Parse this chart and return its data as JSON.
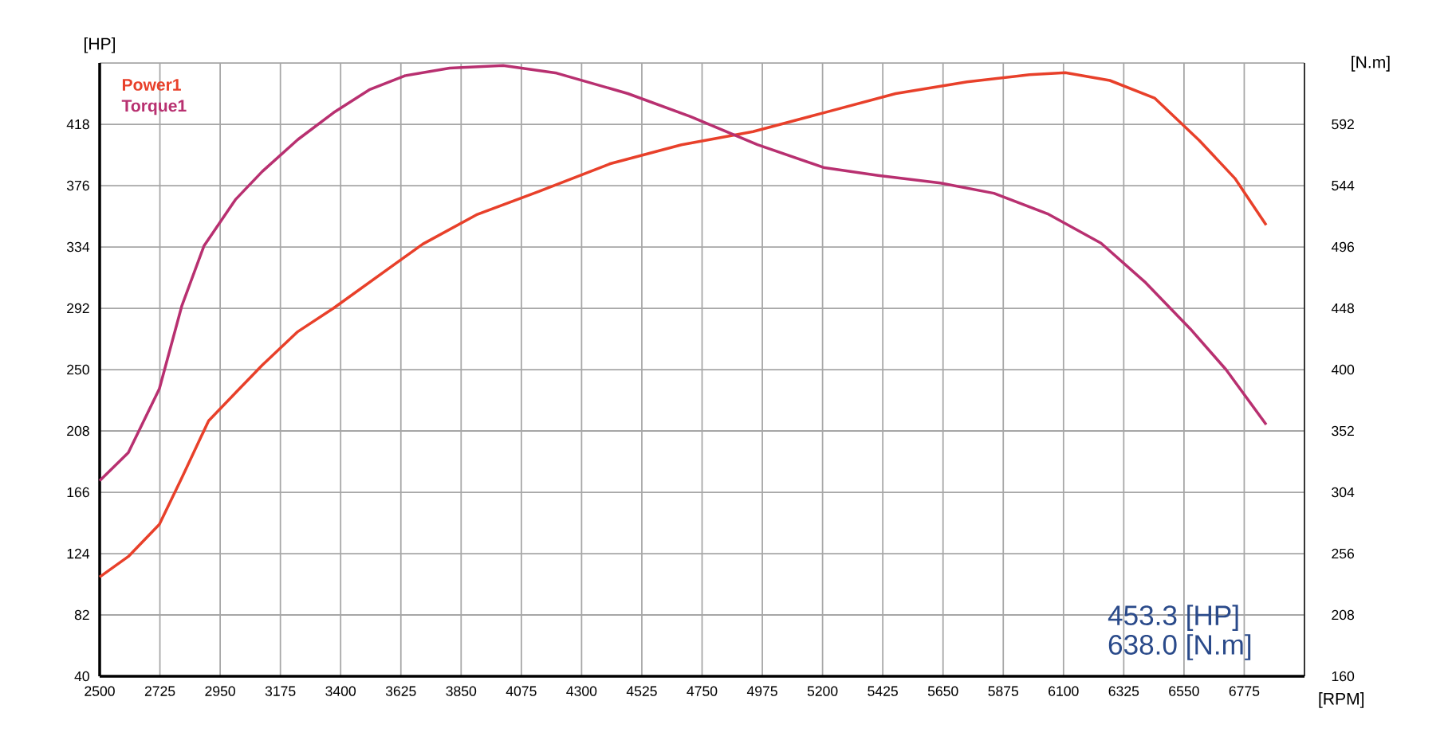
{
  "chart_data": {
    "type": "line",
    "xlabel": "[RPM]",
    "ylabel": "[HP]",
    "y2label": "[N.m]",
    "xlim": [
      2500,
      7000
    ],
    "xticks": [
      2500,
      2725,
      2950,
      3175,
      3400,
      3625,
      3850,
      4075,
      4300,
      4525,
      4750,
      4975,
      5200,
      5425,
      5650,
      5875,
      6100,
      6325,
      6550,
      6775,
      {
        "value": 7000,
        "label": null
      }
    ],
    "ylim": [
      40,
      460
    ],
    "yticks": [
      40,
      82,
      124,
      166,
      208,
      250,
      292,
      334,
      376,
      418,
      {
        "value": 460,
        "label": null
      }
    ],
    "y2lim": [
      160,
      640
    ],
    "y2ticks": [
      160,
      208,
      256,
      304,
      352,
      400,
      448,
      496,
      544,
      592
    ],
    "grid": true,
    "legend": "top left",
    "marker": "none",
    "line_style": "solid",
    "annotations": [
      "453.3  [HP]",
      "638.0  [N.m]"
    ],
    "series": [
      {
        "name": "Power1",
        "color": "#e8402a",
        "x": [
          2500,
          2607,
          2723,
          2807,
          2907,
          3007,
          3107,
          3240,
          3373,
          3540,
          3707,
          3907,
          4140,
          4407,
          4673,
          4940,
          5207,
          5473,
          5740,
          5973,
          6107,
          6273,
          6440,
          6607,
          6740,
          6857
        ],
        "values": [
          108,
          122,
          144,
          176,
          215,
          234,
          253,
          276,
          292,
          314,
          336,
          356,
          372,
          391,
          404,
          413,
          426,
          439,
          447,
          452,
          453.3,
          448,
          436,
          407,
          381,
          349
        ]
      },
      {
        "name": "Torque1",
        "color": "#b83070",
        "axis": "y2",
        "x": [
          2500,
          2607,
          2723,
          2807,
          2890,
          3007,
          3107,
          3240,
          3373,
          3507,
          3640,
          3807,
          4007,
          4207,
          4473,
          4707,
          4957,
          5207,
          5407,
          5640,
          5840,
          6040,
          6240,
          6407,
          6573,
          6707,
          6857
        ],
        "values": [
          313,
          335,
          385,
          450,
          497,
          533,
          555,
          580,
          601,
          619,
          630,
          636,
          638,
          632,
          616,
          598,
          576,
          558,
          552,
          546,
          538,
          522,
          499,
          468,
          432,
          400,
          357
        ]
      }
    ]
  }
}
